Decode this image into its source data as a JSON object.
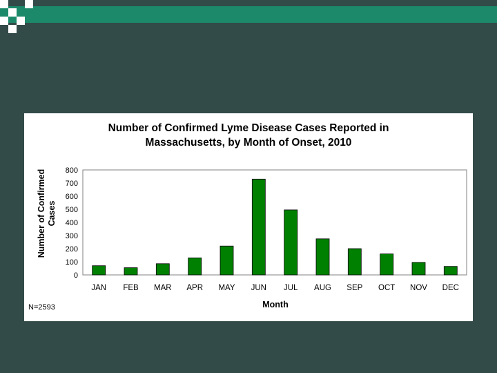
{
  "slide": {
    "colors": {
      "background": "#334b48",
      "accent_bar": "#1c8a6a",
      "bar_fill": "#008000"
    }
  },
  "chart_data": {
    "type": "bar",
    "title": [
      "Number of Confirmed Lyme Disease Cases Reported in",
      "Massachusetts, by Month of Onset, 2010"
    ],
    "xlabel": "Month",
    "ylabel": [
      "Number of Confirmed",
      "Cases"
    ],
    "categories": [
      "JAN",
      "FEB",
      "MAR",
      "APR",
      "MAY",
      "JUN",
      "JUL",
      "AUG",
      "SEP",
      "OCT",
      "NOV",
      "DEC"
    ],
    "values": [
      70,
      55,
      85,
      130,
      220,
      730,
      495,
      275,
      200,
      160,
      95,
      65
    ],
    "ylim": [
      0,
      800
    ],
    "yticks": [
      0,
      100,
      200,
      300,
      400,
      500,
      600,
      700,
      800
    ],
    "grid": false,
    "bar_color": "#008000",
    "note": "N=2593"
  }
}
